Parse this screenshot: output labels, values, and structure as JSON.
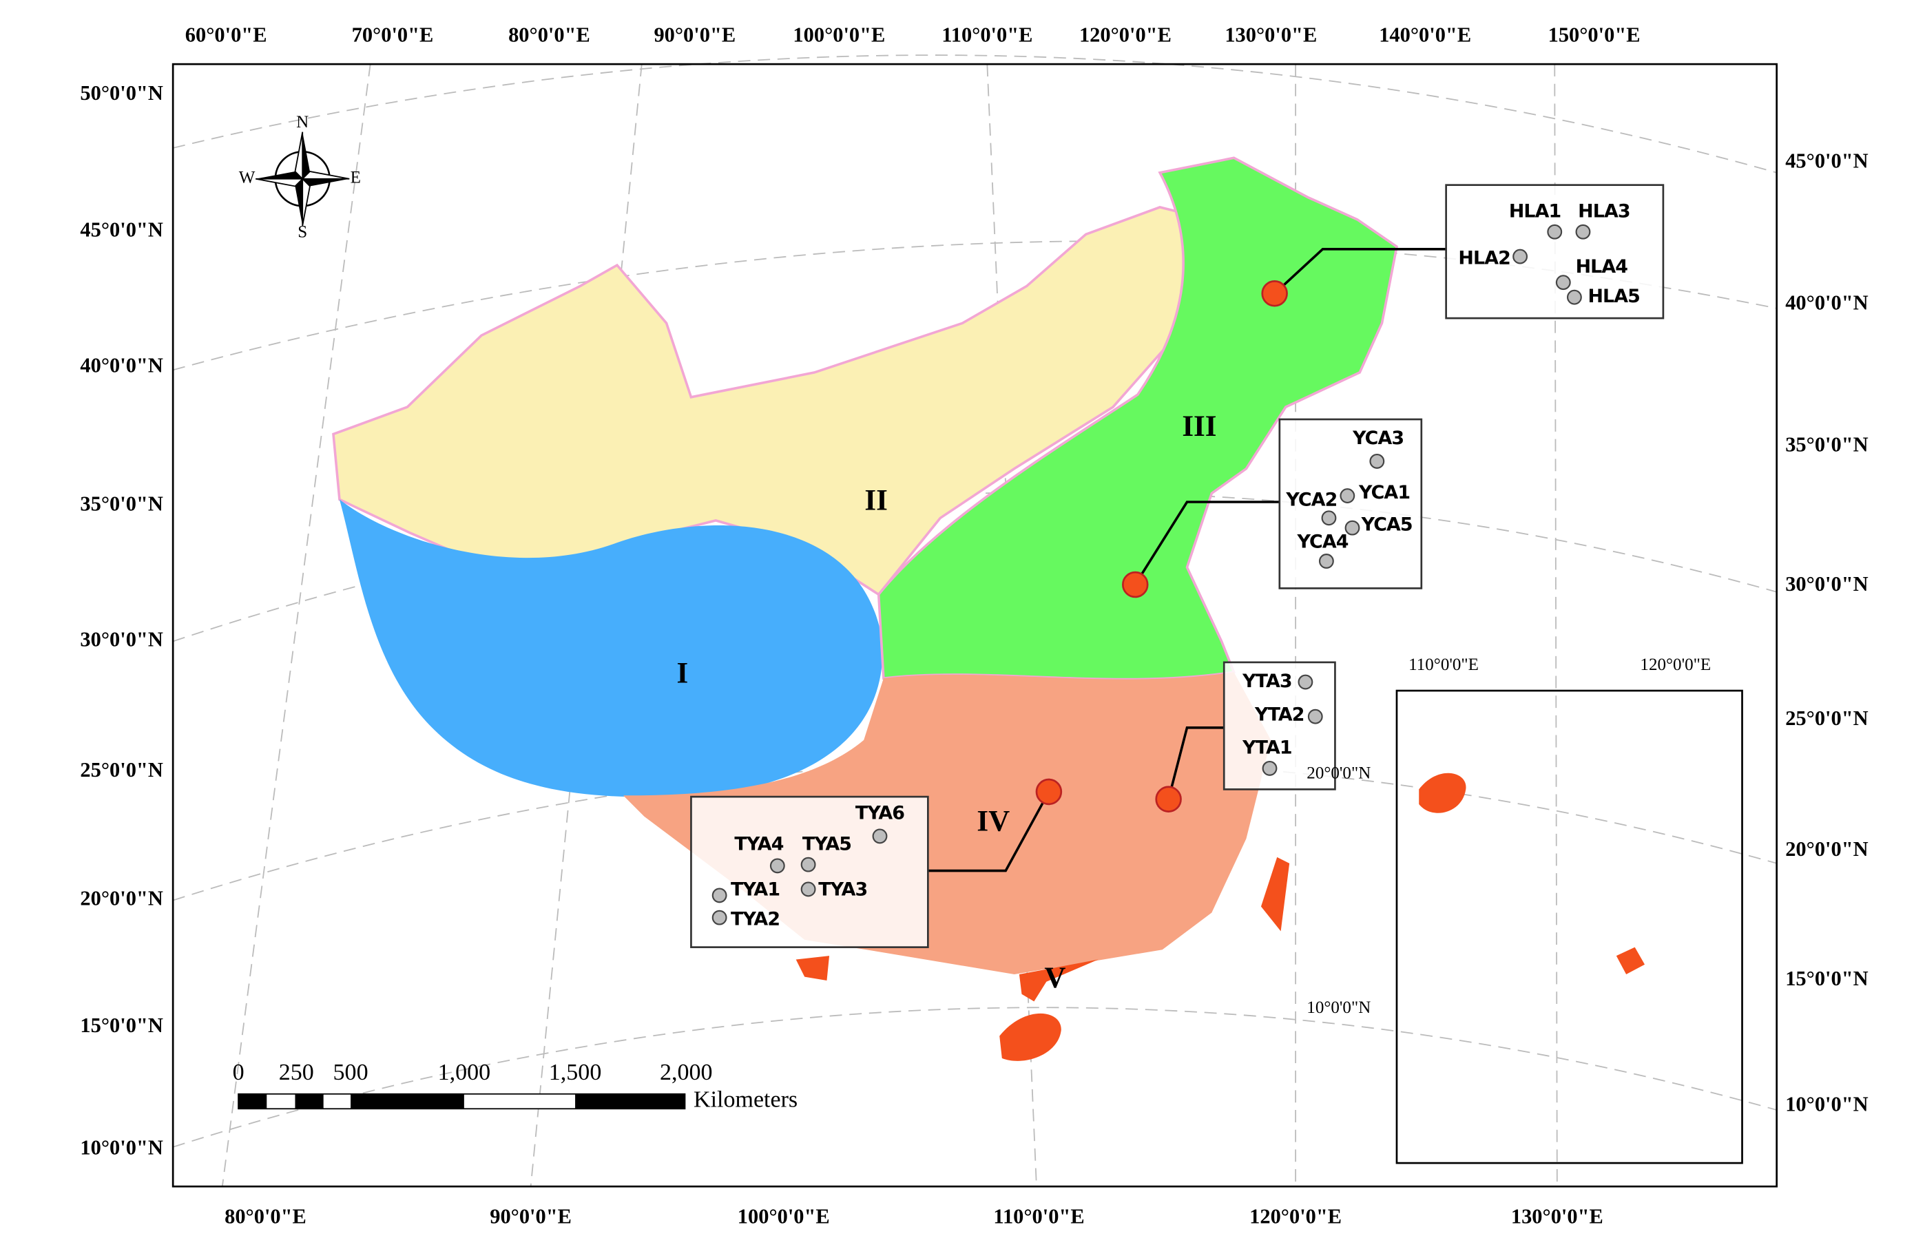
{
  "map": {
    "top_labels": [
      "60°0'0\"E",
      "70°0'0\"E",
      "80°0'0\"E",
      "90°0'0\"E",
      "100°0'0\"E",
      "110°0'0\"E",
      "120°0'0\"E",
      "130°0'0\"E",
      "140°0'0\"E",
      "150°0'0\"E"
    ],
    "bottom_labels": [
      "80°0'0\"E",
      "90°0'0\"E",
      "100°0'0\"E",
      "110°0'0\"E",
      "120°0'0\"E",
      "130°0'0\"E"
    ],
    "left_labels": [
      "50°0'0\"N",
      "45°0'0\"N",
      "40°0'0\"N",
      "35°0'0\"N",
      "30°0'0\"N",
      "25°0'0\"N",
      "20°0'0\"N",
      "15°0'0\"N",
      "10°0'0\"N"
    ],
    "right_labels": [
      "45°0'0\"N",
      "40°0'0\"N",
      "35°0'0\"N",
      "30°0'0\"N",
      "25°0'0\"N",
      "20°0'0\"N",
      "15°0'0\"N",
      "10°0'0\"N"
    ],
    "compass": {
      "n": "N",
      "s": "S",
      "e": "E",
      "w": "W"
    },
    "regions": [
      "I",
      "II",
      "III",
      "IV",
      "V"
    ],
    "site_groups": [
      {
        "sites": [
          "HLA1",
          "HLA3",
          "HLA2",
          "HLA4",
          "HLA5"
        ]
      },
      {
        "sites": [
          "YCA3",
          "YCA1",
          "YCA2",
          "YCA5",
          "YCA4"
        ]
      },
      {
        "sites": [
          "YTA3",
          "YTA2",
          "YTA1"
        ]
      },
      {
        "sites": [
          "TYA6",
          "TYA4",
          "TYA5",
          "TYA1",
          "TYA3",
          "TYA2"
        ]
      }
    ],
    "scale_bar": {
      "ticks": [
        "0",
        "250",
        "500",
        "1,000",
        "1,500",
        "2,000"
      ],
      "unit": "Kilometers"
    },
    "inset": {
      "lon_labels": [
        "110°0'0\"E",
        "120°0'0\"E"
      ],
      "lat_labels": [
        "20°0'0\"N",
        "10°0'0\"N"
      ]
    }
  }
}
